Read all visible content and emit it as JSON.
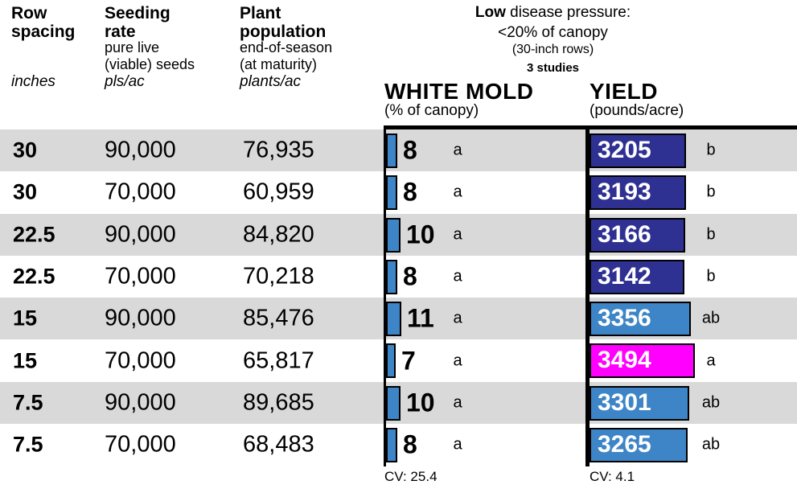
{
  "accent_colors": {
    "bar_light_blue": "#3d85c6",
    "bar_dark_blue": "#2e3192",
    "bar_magenta": "#ff00ff",
    "row_band_gray": "#d9d9d9"
  },
  "table_header": {
    "col_row_spacing": {
      "title": "Row\nspacing",
      "unit": "inches"
    },
    "col_seeding_rate": {
      "title": "Seeding\nrate",
      "sub": "pure live\n(viable) seeds",
      "unit": "pls/ac"
    },
    "col_plant_population": {
      "title": "Plant\npopulation",
      "sub": "end-of-season\n(at maturity)",
      "unit": "plants/ac"
    }
  },
  "condition": {
    "line1_bold": "Low",
    "line1_rest": " disease pressure:",
    "line2": "<20% of canopy",
    "line3": "(30-inch rows)",
    "line4": "3 studies"
  },
  "white_mold_chart": {
    "title": "WHITE MOLD",
    "subtitle": "(% of canopy)",
    "cv_label": "CV: 25.4"
  },
  "yield_chart": {
    "title": "YIELD",
    "subtitle": "(pounds/acre)",
    "cv_label": "CV: 4.1"
  },
  "rows": [
    {
      "row_spacing": "30",
      "seeding_rate": "90,000",
      "plant_population": "76,935",
      "white_mold_pct": 8,
      "wm_letter": "a",
      "yield_value": 3205,
      "yield_letter": "b",
      "yield_color": "#2e3192"
    },
    {
      "row_spacing": "30",
      "seeding_rate": "70,000",
      "plant_population": "60,959",
      "white_mold_pct": 8,
      "wm_letter": "a",
      "yield_value": 3193,
      "yield_letter": "b",
      "yield_color": "#2e3192"
    },
    {
      "row_spacing": "22.5",
      "seeding_rate": "90,000",
      "plant_population": "84,820",
      "white_mold_pct": 10,
      "wm_letter": "a",
      "yield_value": 3166,
      "yield_letter": "b",
      "yield_color": "#2e3192"
    },
    {
      "row_spacing": "22.5",
      "seeding_rate": "70,000",
      "plant_population": "70,218",
      "white_mold_pct": 8,
      "wm_letter": "a",
      "yield_value": 3142,
      "yield_letter": "b",
      "yield_color": "#2e3192"
    },
    {
      "row_spacing": "15",
      "seeding_rate": "90,000",
      "plant_population": "85,476",
      "white_mold_pct": 11,
      "wm_letter": "a",
      "yield_value": 3356,
      "yield_letter": "ab",
      "yield_color": "#3d85c6"
    },
    {
      "row_spacing": "15",
      "seeding_rate": "70,000",
      "plant_population": "65,817",
      "white_mold_pct": 7,
      "wm_letter": "a",
      "yield_value": 3494,
      "yield_letter": "a",
      "yield_color": "#ff00ff"
    },
    {
      "row_spacing": "7.5",
      "seeding_rate": "90,000",
      "plant_population": "89,685",
      "white_mold_pct": 10,
      "wm_letter": "a",
      "yield_value": 3301,
      "yield_letter": "ab",
      "yield_color": "#3d85c6"
    },
    {
      "row_spacing": "7.5",
      "seeding_rate": "70,000",
      "plant_population": "68,483",
      "white_mold_pct": 8,
      "wm_letter": "a",
      "yield_value": 3265,
      "yield_letter": "ab",
      "yield_color": "#3d85c6"
    }
  ],
  "chart_data": [
    {
      "type": "bar",
      "orientation": "horizontal",
      "title": "WHITE MOLD (% of canopy)",
      "context": "Low disease pressure: <20% of canopy (30-inch rows), 3 studies",
      "categories": [
        "30 in / 90,000 pls",
        "30 in / 70,000 pls",
        "22.5 in / 90,000 pls",
        "22.5 in / 70,000 pls",
        "15 in / 90,000 pls",
        "15 in / 70,000 pls",
        "7.5 in / 90,000 pls",
        "7.5 in / 70,000 pls"
      ],
      "values": [
        8,
        8,
        10,
        8,
        11,
        7,
        10,
        8
      ],
      "significance_letters": [
        "a",
        "a",
        "a",
        "a",
        "a",
        "a",
        "a",
        "a"
      ],
      "cv": 25.4,
      "xlabel": "% of canopy",
      "legend": false,
      "grid": false
    },
    {
      "type": "bar",
      "orientation": "horizontal",
      "title": "YIELD (pounds/acre)",
      "context": "Low disease pressure: <20% of canopy (30-inch rows), 3 studies",
      "categories": [
        "30 in / 90,000 pls",
        "30 in / 70,000 pls",
        "22.5 in / 90,000 pls",
        "22.5 in / 70,000 pls",
        "15 in / 90,000 pls",
        "15 in / 70,000 pls",
        "7.5 in / 90,000 pls",
        "7.5 in / 70,000 pls"
      ],
      "values": [
        3205,
        3193,
        3166,
        3142,
        3356,
        3494,
        3301,
        3265
      ],
      "significance_letters": [
        "b",
        "b",
        "b",
        "b",
        "ab",
        "a",
        "ab",
        "ab"
      ],
      "cv": 4.1,
      "xlabel": "pounds/acre",
      "legend": false,
      "grid": false
    },
    {
      "type": "table",
      "title": "Treatments",
      "columns": [
        "Row spacing (inches)",
        "Seeding rate (pls/ac)",
        "Plant population (plants/ac)"
      ],
      "rows": [
        [
          "30",
          "90,000",
          "76,935"
        ],
        [
          "30",
          "70,000",
          "60,959"
        ],
        [
          "22.5",
          "90,000",
          "84,820"
        ],
        [
          "22.5",
          "70,000",
          "70,218"
        ],
        [
          "15",
          "90,000",
          "85,476"
        ],
        [
          "15",
          "70,000",
          "65,817"
        ],
        [
          "7.5",
          "90,000",
          "89,685"
        ],
        [
          "7.5",
          "70,000",
          "68,483"
        ]
      ]
    }
  ]
}
